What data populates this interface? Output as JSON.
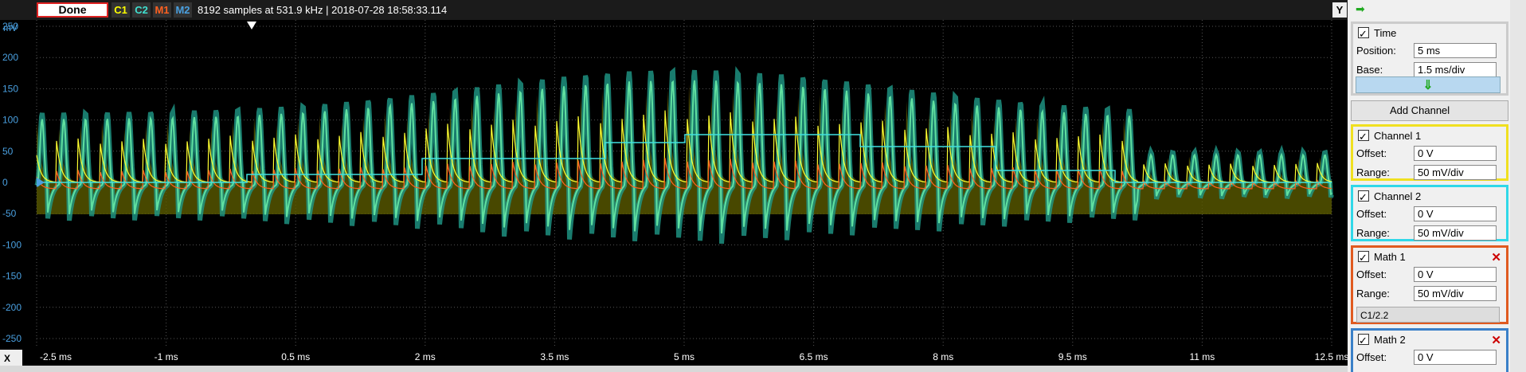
{
  "toolbar": {
    "status": "Done",
    "channels": [
      "C1",
      "C2",
      "M1",
      "M2"
    ],
    "info": "8192 samples at 531.9 kHz | 2018-07-28 18:58:33.114",
    "y_button": "Y"
  },
  "y_axis": {
    "unit": "mV",
    "ticks": [
      "250",
      "200",
      "150",
      "100",
      "50",
      "0",
      "-50",
      "-100",
      "-150",
      "-200",
      "-250"
    ]
  },
  "x_axis": {
    "button": "X",
    "ticks": [
      "-2.5 ms",
      "-1 ms",
      "0.5 ms",
      "2 ms",
      "3.5 ms",
      "5 ms",
      "6.5 ms",
      "8 ms",
      "9.5 ms",
      "11 ms",
      "12.5 ms"
    ]
  },
  "panel": {
    "time": {
      "title": "Time",
      "fields": [
        {
          "label": "Position:",
          "value": "5 ms"
        },
        {
          "label": "Base:",
          "value": "1.5 ms/div"
        }
      ]
    },
    "add_channel": "Add Channel",
    "channels": [
      {
        "title": "Channel 1",
        "fields": [
          {
            "label": "Offset:",
            "value": "0 V"
          },
          {
            "label": "Range:",
            "value": "50 mV/div"
          }
        ]
      },
      {
        "title": "Channel 2",
        "fields": [
          {
            "label": "Offset:",
            "value": "0 V"
          },
          {
            "label": "Range:",
            "value": "50 mV/div"
          }
        ]
      },
      {
        "title": "Math 1",
        "fields": [
          {
            "label": "Offset:",
            "value": "0 V"
          },
          {
            "label": "Range:",
            "value": "50 mV/div"
          }
        ],
        "formula": "C1/2.2"
      },
      {
        "title": "Math 2",
        "fields": [
          {
            "label": "Offset:",
            "value": "0 V"
          }
        ]
      }
    ]
  }
}
